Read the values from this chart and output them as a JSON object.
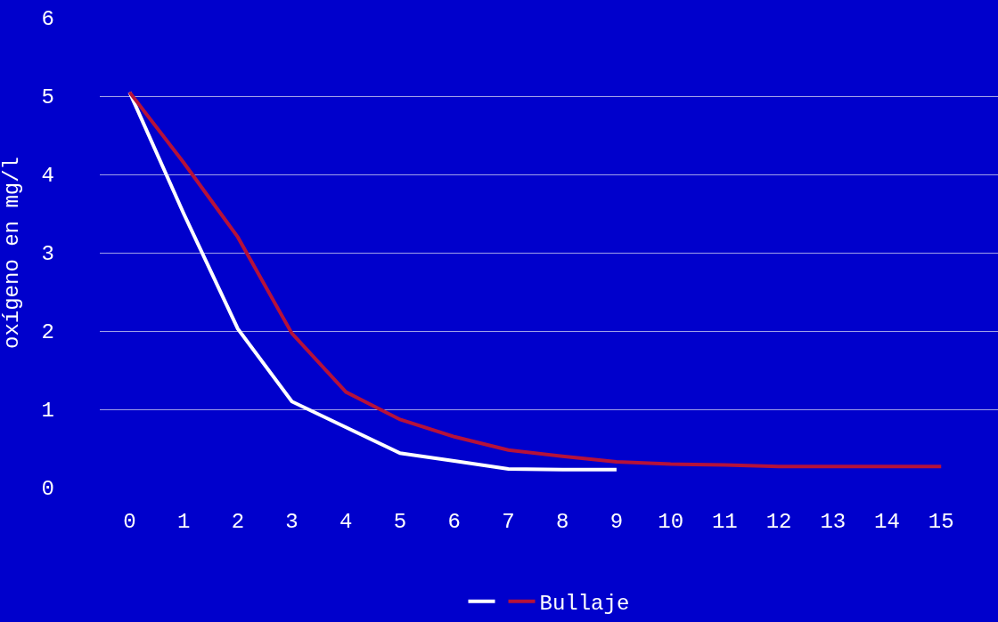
{
  "chart_data": {
    "type": "line",
    "ylabel": "oxígeno en mg/l",
    "x": [
      0,
      1,
      2,
      3,
      4,
      5,
      6,
      7,
      8,
      9,
      10,
      11,
      12,
      13,
      14,
      15
    ],
    "series": [
      {
        "color": "#ffffff",
        "x": [
          0,
          1,
          2,
          3,
          4,
          5,
          6,
          7,
          8,
          9
        ],
        "values": [
          5.05,
          3.5,
          2.03,
          1.1,
          0.77,
          0.44,
          0.34,
          0.24,
          0.23,
          0.23
        ]
      },
      {
        "name": "Bullaje",
        "color": "#b5123a",
        "values": [
          5.05,
          4.15,
          3.2,
          1.97,
          1.22,
          0.87,
          0.65,
          0.48,
          0.4,
          0.33,
          0.3,
          0.29,
          0.27,
          0.27,
          0.27,
          0.27
        ]
      }
    ],
    "xlim": [
      -0.55,
      16.05
    ],
    "xticks": [
      0,
      1,
      2,
      3,
      4,
      5,
      6,
      7,
      8,
      9,
      10,
      11,
      12,
      13,
      14,
      15
    ],
    "ylim": [
      0,
      6
    ],
    "yticks": [
      0,
      1,
      2,
      3,
      4,
      5,
      6
    ],
    "grid": "y",
    "legend": "bottom",
    "marker": "none",
    "line_style": "solid"
  }
}
